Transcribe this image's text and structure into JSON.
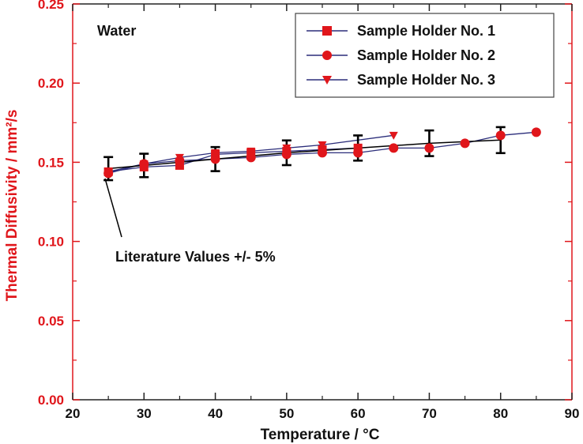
{
  "chart_data": {
    "type": "line",
    "annotation_top_left": "Water",
    "xlabel": "Temperature / °C",
    "ylabel": "Thermal Diffusivity / mm²/s",
    "xlim": [
      20,
      90
    ],
    "ylim": [
      0.0,
      0.25
    ],
    "x_ticks": [
      "20",
      "30",
      "40",
      "50",
      "60",
      "70",
      "80",
      "90"
    ],
    "y_ticks": [
      "0.00",
      "0.05",
      "0.10",
      "0.15",
      "0.20",
      "0.25"
    ],
    "grid": false,
    "legend_position": "top-right",
    "series": [
      {
        "name": "Sample Holder No. 1",
        "marker": "square",
        "x": [
          25,
          30,
          35,
          40,
          45,
          50,
          55,
          60
        ],
        "y": [
          0.144,
          0.147,
          0.148,
          0.155,
          0.156,
          0.157,
          0.158,
          0.159
        ]
      },
      {
        "name": "Sample Holder No. 2",
        "marker": "circle",
        "x": [
          25,
          30,
          35,
          40,
          45,
          50,
          55,
          60,
          65,
          70,
          75,
          80,
          85
        ],
        "y": [
          0.143,
          0.149,
          0.151,
          0.152,
          0.153,
          0.155,
          0.156,
          0.156,
          0.159,
          0.159,
          0.162,
          0.167,
          0.169
        ]
      },
      {
        "name": "Sample Holder No. 3",
        "marker": "triangle-down",
        "x": [
          25,
          30,
          35,
          40,
          45,
          50,
          55,
          65
        ],
        "y": [
          0.144,
          0.149,
          0.153,
          0.156,
          0.157,
          0.159,
          0.161,
          0.167
        ]
      },
      {
        "name": "Literature Values +/- 5%",
        "marker": "errorbar",
        "x": [
          25,
          30,
          40,
          50,
          60,
          70,
          80
        ],
        "y": [
          0.146,
          0.148,
          0.152,
          0.156,
          0.159,
          0.162,
          0.164
        ],
        "error_pct": 5
      }
    ],
    "literature_label": "Literature Values +/- 5%",
    "colors": {
      "axis_red": "#e0161b",
      "line_navy": "#2b2d7a",
      "marker_red": "#e0161b",
      "errorbar_black": "#000000"
    }
  }
}
